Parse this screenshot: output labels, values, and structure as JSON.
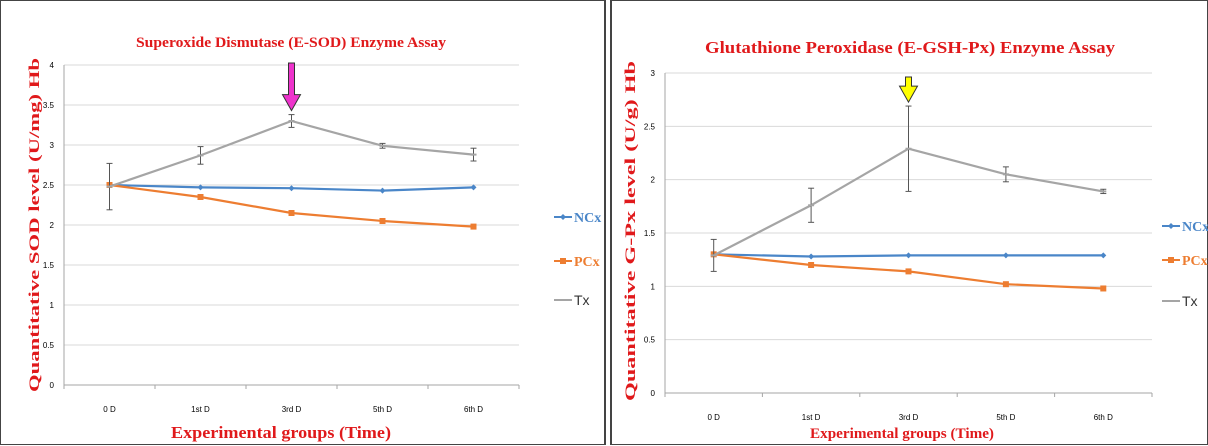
{
  "colors": {
    "title": "#e0191b",
    "axis_label": "#e0191b",
    "grid": "#d9d9d9",
    "axis": "#a6a6a6",
    "ncx": "#4a86c8",
    "pcx": "#ed7d31",
    "tx": "#a5a5a5",
    "arrow_sod": "#ee33cc",
    "arrow_gsh": "#ffff00"
  },
  "chart_data": [
    {
      "type": "line",
      "title": "Superoxide Dismutase (E-SOD) Enzyme Assay",
      "xlabel": "Experimental groups (Time)",
      "ylabel": "Quantitative SOD level (U/mg) Hb",
      "categories": [
        "0 D",
        "1st D",
        "3rd D",
        "5th D",
        "6th D"
      ],
      "ylim": [
        0,
        4
      ],
      "yticks": [
        "0",
        "0.5",
        "1",
        "1.5",
        "2",
        "2.5",
        "3",
        "3.5",
        "4"
      ],
      "grid": true,
      "legend_placement": "right",
      "series": [
        {
          "name": "NCx",
          "values": [
            2.5,
            2.47,
            2.46,
            2.43,
            2.47
          ]
        },
        {
          "name": "PCx",
          "values": [
            2.5,
            2.35,
            2.15,
            2.05,
            1.98
          ]
        },
        {
          "name": "Tx",
          "values": [
            2.48,
            2.87,
            3.3,
            2.99,
            2.88
          ],
          "error": [
            0.29,
            0.11,
            0.08,
            0.03,
            0.08
          ]
        }
      ],
      "highlight_arrow_category": "3rd D"
    },
    {
      "type": "line",
      "title": "Glutathione Peroxidase (E-GSH-Px) Enzyme Assay",
      "xlabel": "Experimental groups (Time)",
      "ylabel": "Quantitative G-Px level (U/g) Hb",
      "categories": [
        "0 D",
        "1st D",
        "3rd D",
        "5th D",
        "6th D"
      ],
      "ylim": [
        0,
        3
      ],
      "yticks": [
        "0",
        "0.5",
        "1",
        "1.5",
        "2",
        "2.5",
        "3"
      ],
      "grid": true,
      "legend_placement": "right",
      "series": [
        {
          "name": "NCx",
          "values": [
            1.3,
            1.28,
            1.29,
            1.29,
            1.29
          ]
        },
        {
          "name": "PCx",
          "values": [
            1.3,
            1.2,
            1.14,
            1.02,
            0.98
          ]
        },
        {
          "name": "Tx",
          "values": [
            1.29,
            1.76,
            2.29,
            2.05,
            1.89
          ],
          "error": [
            0.15,
            0.16,
            0.4,
            0.07,
            0.02
          ]
        }
      ],
      "highlight_arrow_category": "3rd D"
    }
  ]
}
